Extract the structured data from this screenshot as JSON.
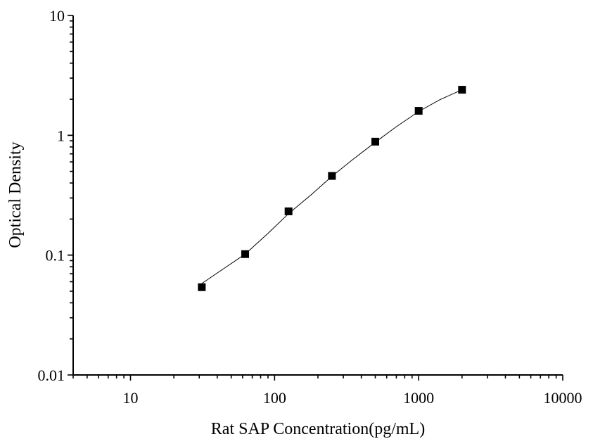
{
  "chart_data": {
    "type": "scatter",
    "xlabel": "Rat SAP Concentration(pg/mL)",
    "ylabel": "Optical Density",
    "x_scale": "log",
    "y_scale": "log",
    "xlim": [
      4,
      10000
    ],
    "ylim": [
      0.01,
      10
    ],
    "x_major_ticks": [
      10,
      100,
      1000,
      10000
    ],
    "x_tick_labels": [
      "10",
      "100",
      "1000",
      "10000"
    ],
    "y_major_ticks": [
      0.01,
      0.1,
      1,
      10
    ],
    "y_tick_labels": [
      "0.01",
      "0.1",
      "1",
      "10"
    ],
    "grid": false,
    "colors": {
      "axis": "#000000",
      "series": "#000000"
    },
    "series": [
      {
        "marker": "square",
        "x": [
          31.25,
          62.5,
          125,
          250,
          500,
          1000,
          2000
        ],
        "y": [
          0.054,
          0.102,
          0.232,
          0.458,
          0.885,
          1.6,
          2.4
        ]
      }
    ],
    "fit_curve": {
      "x": [
        31.25,
        45,
        62.5,
        90,
        125,
        180,
        250,
        350,
        500,
        700,
        1000,
        1400,
        2000
      ],
      "y": [
        0.058,
        0.078,
        0.102,
        0.152,
        0.222,
        0.32,
        0.455,
        0.63,
        0.875,
        1.18,
        1.58,
        1.98,
        2.4
      ]
    }
  }
}
